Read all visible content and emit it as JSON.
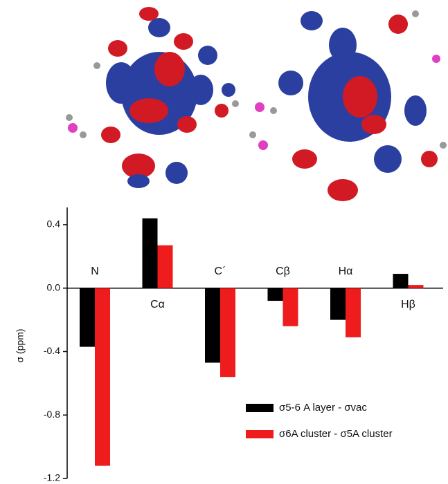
{
  "chart_data": {
    "type": "bar",
    "y_label": "σ (ppm)",
    "categories": [
      "N",
      "Cα",
      "C´",
      "Cβ",
      "Hα",
      "Hβ"
    ],
    "series": [
      {
        "name": "σ5-6 A layer - σvac",
        "color": "#000000",
        "values": [
          -0.37,
          0.44,
          -0.47,
          -0.08,
          -0.2,
          0.09
        ]
      },
      {
        "name": "σ6A cluster - σ5A cluster",
        "color": "#ee1c1c",
        "values": [
          -1.12,
          0.27,
          -0.56,
          -0.24,
          -0.31,
          0.02
        ]
      }
    ],
    "ylim": [
      -1.2,
      0.5
    ],
    "yticks": [
      0.4,
      {
        "value": 0,
        "label": "0.0"
      },
      -0.4,
      -0.8,
      -1.2
    ],
    "legend": "lower right",
    "grid": false
  }
}
